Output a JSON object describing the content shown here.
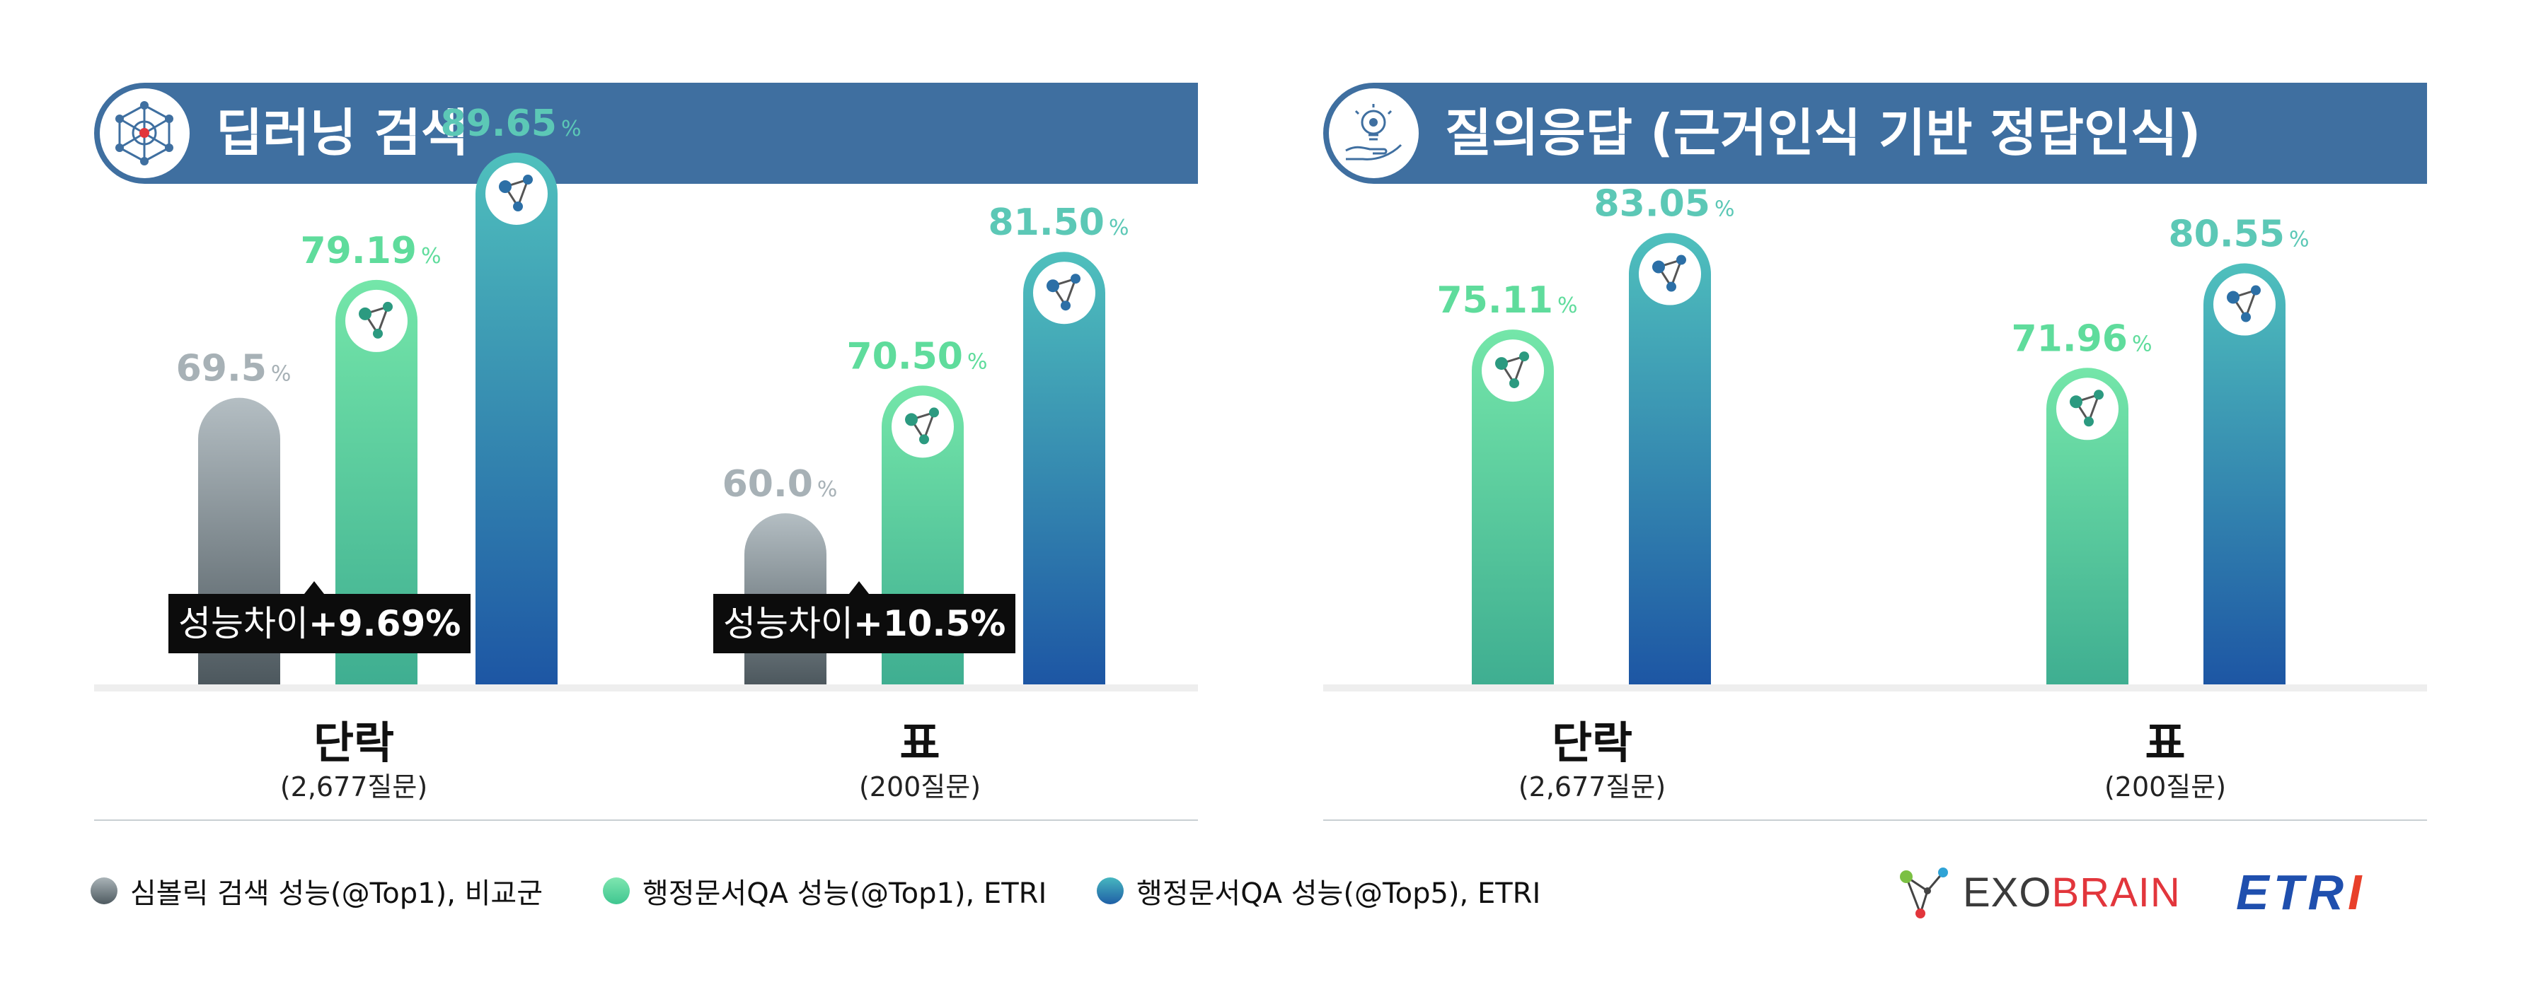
{
  "panels": [
    {
      "title": "딥러닝 검색",
      "icon": "neural-network-icon",
      "diffs": [
        {
          "label": "성능차이",
          "value": "+9.69%"
        },
        {
          "label": "성능차이",
          "value": "+10.5%"
        }
      ]
    },
    {
      "title": "질의응답 (근거인식 기반 정답인식)",
      "icon": "lightbulb-hand-icon",
      "diffs": []
    }
  ],
  "legend": [
    {
      "label": "심볼릭 검색 성능(@Top1), 비교군",
      "color": "#7f8c93"
    },
    {
      "label": "행정문서QA 성능(@Top1), ETRI",
      "color": "#5fdc9c"
    },
    {
      "label": "행정문서QA 성능(@Top5), ETRI",
      "color": "#2a6fb0"
    }
  ],
  "logos": {
    "exobrain_a": "EXO",
    "exobrain_b": "BRAIN",
    "etri_a": "ETR",
    "etri_b": "I"
  },
  "chart_data": [
    {
      "type": "bar",
      "title": "딥러닝 검색",
      "unit": "%",
      "categories": [
        "단락",
        "표"
      ],
      "category_subtitles": [
        "(2,677질문)",
        "(200질문)"
      ],
      "series": [
        {
          "name": "심볼릭 검색 성능(@Top1), 비교군",
          "values": [
            69.5,
            60.0
          ],
          "labels": [
            "69.5",
            "60.0"
          ],
          "color": "#7f8c93"
        },
        {
          "name": "행정문서QA 성능(@Top1), ETRI",
          "values": [
            79.19,
            70.5
          ],
          "labels": [
            "79.19",
            "70.50"
          ],
          "color": "#5fdc9c"
        },
        {
          "name": "행정문서QA 성능(@Top5), ETRI",
          "values": [
            89.65,
            81.5
          ],
          "labels": [
            "89.65",
            "81.50"
          ],
          "color": "#2a6fb0"
        }
      ],
      "ylim": [
        50,
        100
      ],
      "grid": false,
      "legend": "bottom"
    },
    {
      "type": "bar",
      "title": "질의응답 (근거인식 기반 정답인식)",
      "unit": "%",
      "categories": [
        "단락",
        "표"
      ],
      "category_subtitles": [
        "(2,677질문)",
        "(200질문)"
      ],
      "series": [
        {
          "name": "행정문서QA 성능(@Top1), ETRI",
          "values": [
            75.11,
            71.96
          ],
          "labels": [
            "75.11",
            "71.96"
          ],
          "color": "#5fdc9c"
        },
        {
          "name": "행정문서QA 성능(@Top5), ETRI",
          "values": [
            83.05,
            80.55
          ],
          "labels": [
            "83.05",
            "80.55"
          ],
          "color": "#2a6fb0"
        }
      ],
      "ylim": [
        50,
        100
      ],
      "grid": false,
      "legend": "bottom"
    }
  ]
}
